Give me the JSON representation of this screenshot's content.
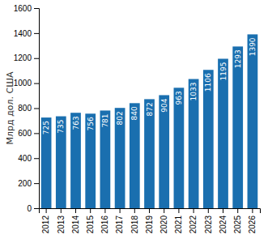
{
  "chart_data": {
    "type": "bar",
    "categories": [
      "2012",
      "2013",
      "2014",
      "2015",
      "2016",
      "2017",
      "2018",
      "2019",
      "2020",
      "2021",
      "2022",
      "2023",
      "2024",
      "2025",
      "2026"
    ],
    "values": [
      725,
      735,
      763,
      756,
      781,
      802,
      840,
      872,
      904,
      963,
      1033,
      1106,
      1195,
      1293,
      1390
    ],
    "color": "#1a6faf",
    "ylabel": "Млрд дол. США",
    "ylim": [
      0,
      1600
    ],
    "yticks": [
      0,
      200,
      400,
      600,
      800,
      1000,
      1200,
      1400,
      1600
    ],
    "grid": false,
    "data_labels": true
  }
}
